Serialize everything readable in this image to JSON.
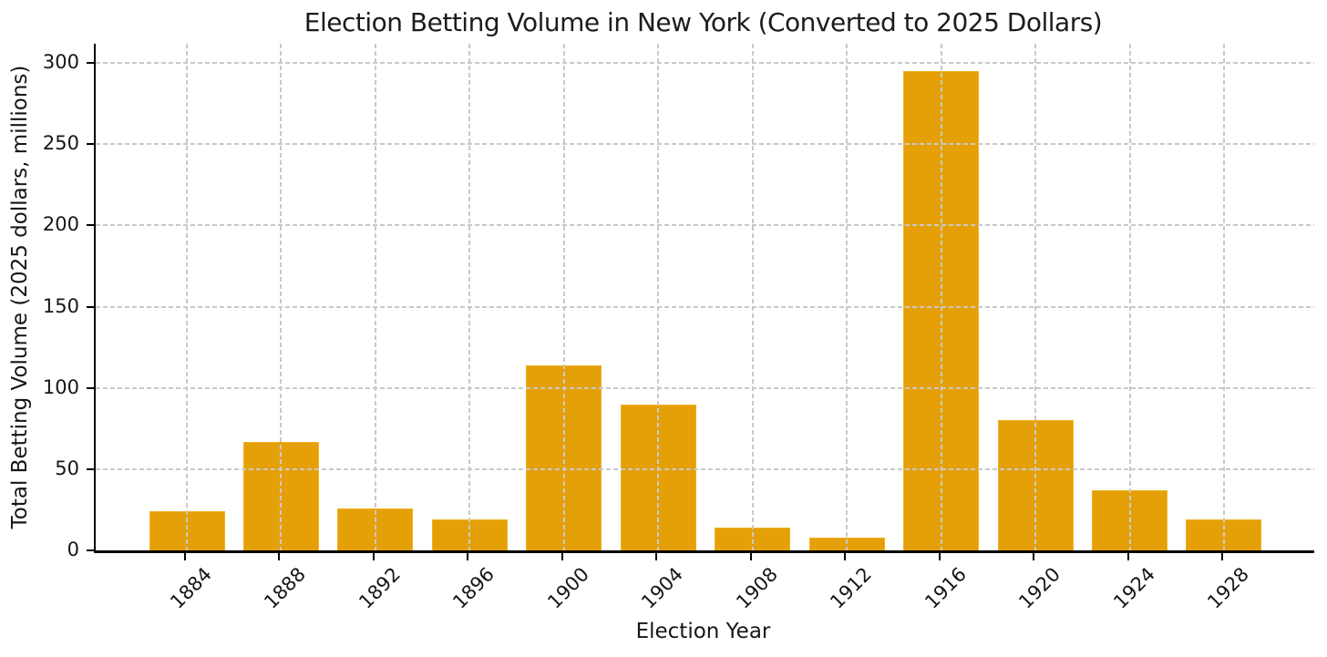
{
  "chart_data": {
    "type": "bar",
    "title": "Election Betting Volume in New York (Converted to 2025 Dollars)",
    "xlabel": "Election Year",
    "ylabel": "Total Betting Volume (2025 dollars, millions)",
    "categories": [
      "1884",
      "1888",
      "1892",
      "1896",
      "1900",
      "1904",
      "1908",
      "1912",
      "1916",
      "1920",
      "1924",
      "1928"
    ],
    "values": [
      24,
      67,
      26,
      19,
      114,
      90,
      14,
      8,
      295,
      80,
      37,
      19
    ],
    "ylim": [
      0,
      312
    ],
    "yticks": [
      0,
      50,
      100,
      150,
      200,
      250,
      300
    ],
    "x_tick_rotation_deg": 45,
    "grid": true,
    "grid_style": "dashed",
    "grid_above_bars": true,
    "legend": null,
    "colors": {
      "bar_fill": "#e5a008",
      "bar_edge": "#eeb21f",
      "grid": "#c9c9c9",
      "axis": "#000000",
      "text": "#161616",
      "background": "#ffffff"
    }
  }
}
